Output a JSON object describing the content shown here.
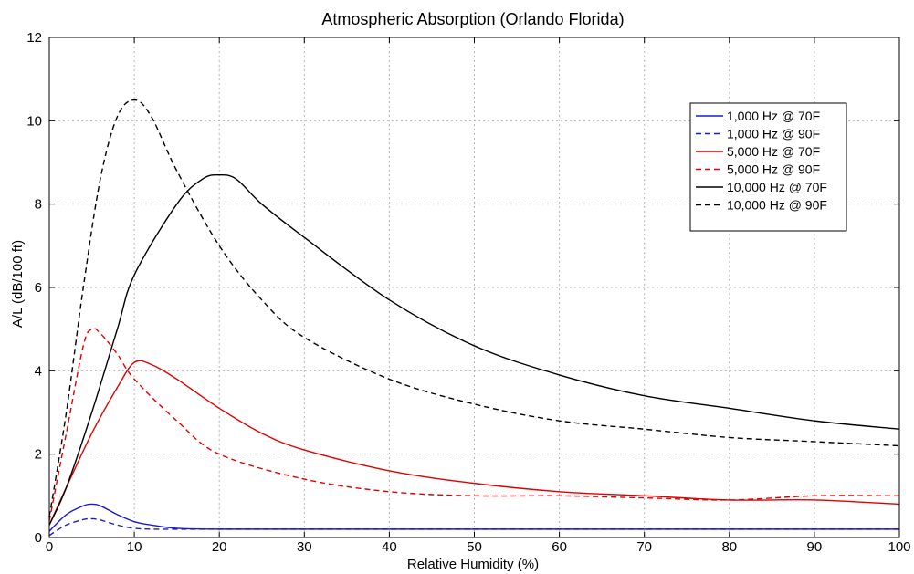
{
  "chart_data": {
    "type": "line",
    "title": "Atmospheric Absorption (Orlando Florida)",
    "xlabel": "Relative Humidity (%)",
    "ylabel": "A/L (dB/100 ft)",
    "xlim": [
      0,
      100
    ],
    "ylim": [
      0,
      12
    ],
    "xticks": [
      "0",
      "10",
      "20",
      "30",
      "40",
      "50",
      "60",
      "70",
      "80",
      "90",
      "100"
    ],
    "yticks": [
      "0",
      "2",
      "4",
      "6",
      "8",
      "10",
      "12"
    ],
    "grid": true,
    "legend_position": "top-right",
    "series": [
      {
        "name": "1,000 Hz @ 70F",
        "color": "#1a1acc",
        "dashed": false,
        "x": [
          0,
          2,
          4,
          5,
          6,
          8,
          10,
          12,
          15,
          20,
          30,
          50,
          100
        ],
        "y": [
          0.15,
          0.55,
          0.76,
          0.8,
          0.76,
          0.55,
          0.38,
          0.3,
          0.22,
          0.2,
          0.2,
          0.2,
          0.2
        ]
      },
      {
        "name": "1,000 Hz @ 90F",
        "color": "#1a1acc",
        "dashed": true,
        "x": [
          0,
          2,
          4,
          5,
          6,
          8,
          10,
          12,
          15,
          20,
          50,
          100
        ],
        "y": [
          0.05,
          0.3,
          0.43,
          0.45,
          0.42,
          0.3,
          0.22,
          0.2,
          0.2,
          0.2,
          0.2,
          0.2
        ]
      },
      {
        "name": "5,000 Hz @ 70F",
        "color": "#e00000",
        "dashed": false,
        "x": [
          0,
          2,
          5,
          8,
          10,
          12,
          15,
          20,
          25,
          30,
          40,
          50,
          60,
          70,
          80,
          90,
          100
        ],
        "y": [
          0.3,
          1.2,
          2.5,
          3.6,
          4.2,
          4.15,
          3.8,
          3.1,
          2.5,
          2.1,
          1.6,
          1.3,
          1.1,
          1.0,
          0.9,
          0.9,
          0.8
        ]
      },
      {
        "name": "5,000 Hz @ 90F",
        "color": "#e00000",
        "dashed": true,
        "x": [
          0,
          2,
          4,
          5,
          6,
          8,
          10,
          15,
          20,
          30,
          40,
          50,
          60,
          70,
          80,
          90,
          100
        ],
        "y": [
          0.4,
          2.5,
          4.6,
          5.0,
          4.9,
          4.4,
          3.8,
          2.8,
          2.0,
          1.4,
          1.1,
          1.0,
          1.0,
          0.95,
          0.9,
          1.0,
          1.0
        ]
      },
      {
        "name": "10,000 Hz @ 70F",
        "color": "#000000",
        "dashed": false,
        "x": [
          0,
          2,
          5,
          8,
          10,
          15,
          18,
          20,
          22,
          25,
          30,
          40,
          50,
          60,
          70,
          80,
          90,
          100
        ],
        "y": [
          0.3,
          1.2,
          3.0,
          5.0,
          6.3,
          8.0,
          8.6,
          8.7,
          8.6,
          8.0,
          7.2,
          5.7,
          4.6,
          3.9,
          3.4,
          3.1,
          2.8,
          2.6
        ]
      },
      {
        "name": "10,000 Hz @ 90F",
        "color": "#000000",
        "dashed": true,
        "x": [
          0,
          2,
          4,
          6,
          8,
          10,
          12,
          15,
          20,
          25,
          30,
          40,
          50,
          60,
          70,
          80,
          90,
          100
        ],
        "y": [
          0.5,
          3.0,
          6.0,
          8.6,
          10.1,
          10.5,
          10.1,
          8.8,
          7.0,
          5.7,
          4.8,
          3.8,
          3.2,
          2.8,
          2.6,
          2.4,
          2.3,
          2.2
        ]
      }
    ]
  }
}
